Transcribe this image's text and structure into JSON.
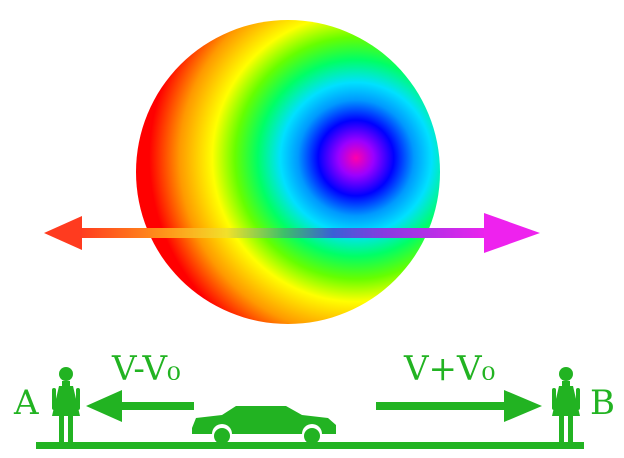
{
  "colors": {
    "green": "#22b322",
    "background": "#ffffff",
    "arrow_left": "#ff3b1f",
    "arrow_right": "#ee22ee"
  },
  "sphere": {
    "gradient_stops": [
      "#ff00aa",
      "#9a00ff",
      "#0000ff",
      "#0099ff",
      "#00e0ff",
      "#00ff66",
      "#66ff00",
      "#ffff00",
      "#ff9900",
      "#ff0000"
    ]
  },
  "labels": {
    "observer_a": "A",
    "observer_b": "B",
    "velocity_left": "V-V₀",
    "velocity_right": "V+V₀"
  },
  "icons": {
    "observer_a": "person-icon",
    "observer_b": "person-icon",
    "vehicle": "car-icon"
  }
}
